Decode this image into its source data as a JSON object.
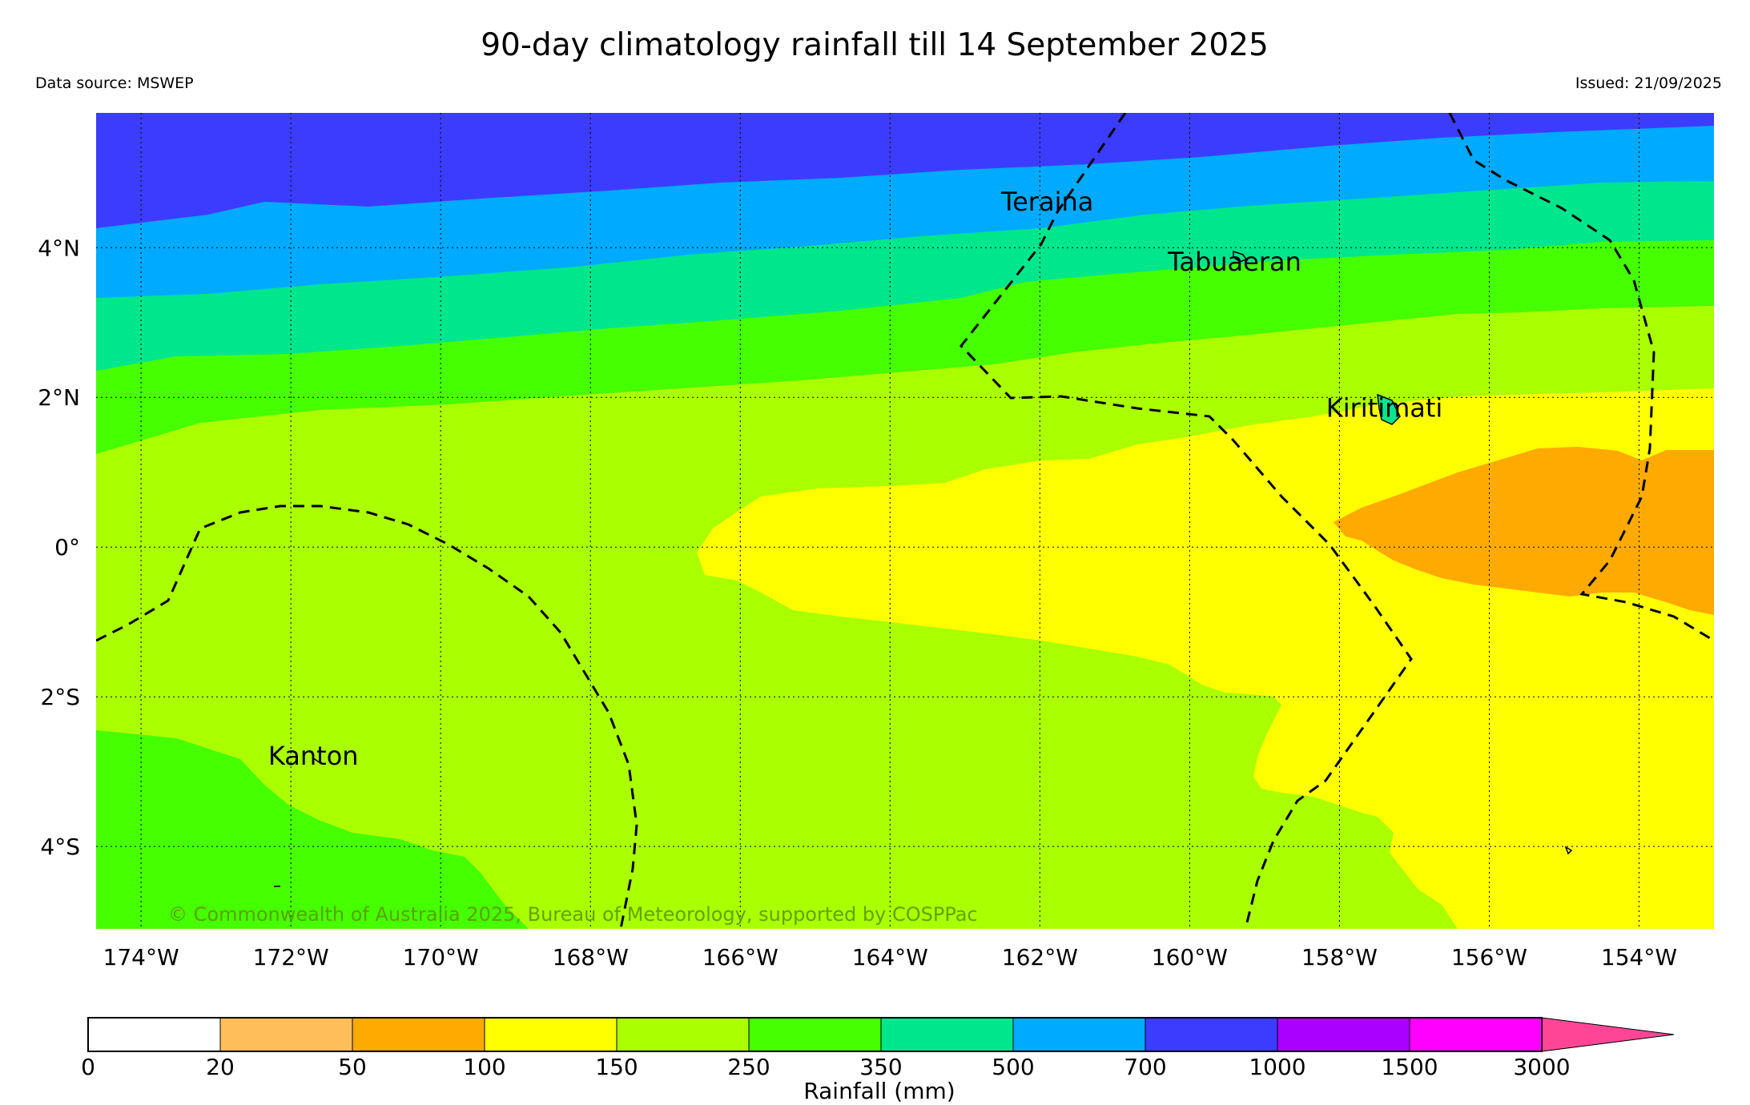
{
  "title": "90-day climatology rainfall till 14 September 2025",
  "data_source": "Data source: MSWEP",
  "issued": "Issued: 21/09/2025",
  "copyright": "© Commonwealth of Australia 2025, Bureau of Meteorology, supported by COSPPac",
  "map": {
    "lon_range": [
      -174.6,
      -153.0
    ],
    "lat_range": [
      -5.1,
      5.8
    ],
    "lon_ticks": [
      {
        "value": -174,
        "label": "174°W"
      },
      {
        "value": -172,
        "label": "172°W"
      },
      {
        "value": -170,
        "label": "170°W"
      },
      {
        "value": -168,
        "label": "168°W"
      },
      {
        "value": -166,
        "label": "166°W"
      },
      {
        "value": -164,
        "label": "164°W"
      },
      {
        "value": -162,
        "label": "162°W"
      },
      {
        "value": -160,
        "label": "160°W"
      },
      {
        "value": -158,
        "label": "158°W"
      },
      {
        "value": -156,
        "label": "156°W"
      },
      {
        "value": -154,
        "label": "154°W"
      }
    ],
    "lat_ticks": [
      {
        "value": 4,
        "label": "4°N"
      },
      {
        "value": 2,
        "label": "2°N"
      },
      {
        "value": 0,
        "label": "0°"
      },
      {
        "value": -2,
        "label": "2°S"
      },
      {
        "value": -4,
        "label": "4°S"
      }
    ],
    "grid": true,
    "places": [
      {
        "name": "Teraina",
        "lon": -161.9,
        "lat": 4.6
      },
      {
        "name": "Tabuaeran",
        "lon": -159.4,
        "lat": 3.8
      },
      {
        "name": "Kiritimati",
        "lon": -157.4,
        "lat": 1.85
      },
      {
        "name": "Kanton",
        "lon": -171.7,
        "lat": -2.8
      }
    ]
  },
  "colorbar": {
    "label": "Rainfall (mm)",
    "ticks": [
      "0",
      "20",
      "50",
      "100",
      "150",
      "250",
      "350",
      "500",
      "700",
      "1000",
      "1500",
      "3000"
    ],
    "colors": [
      "#ffffff",
      "#ffbe5a",
      "#ffaa00",
      "#ffff00",
      "#aaff00",
      "#46ff00",
      "#00e68c",
      "#00aaff",
      "#3c3cff",
      "#aa00ff",
      "#ff00ff"
    ],
    "extend_color": "#ff4696"
  }
}
